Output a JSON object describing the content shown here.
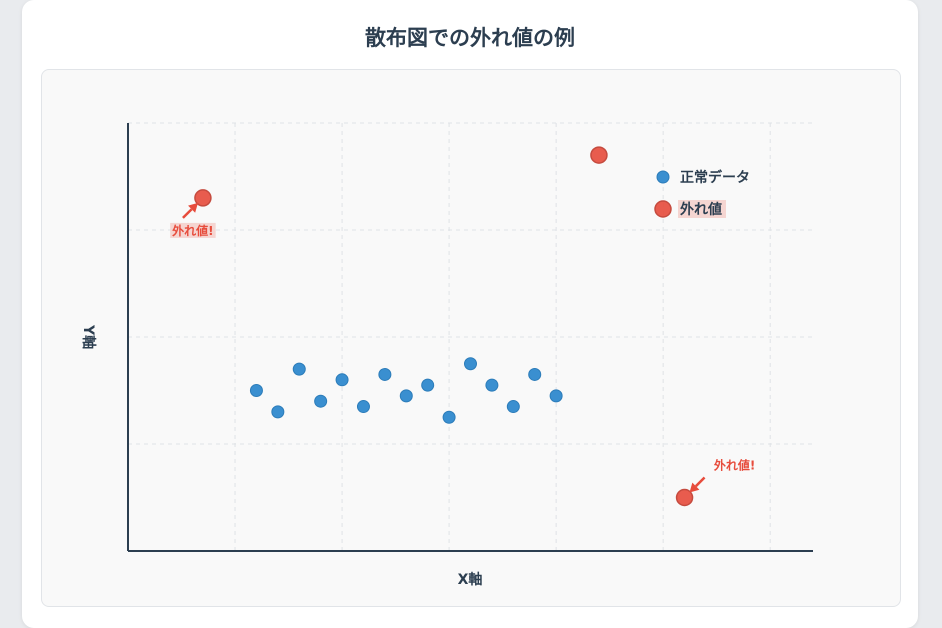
{
  "page": {
    "title": "散布図での外れ値の例"
  },
  "chart_data": {
    "type": "scatter",
    "title": "散布図での外れ値の例",
    "xlabel": "X軸",
    "ylabel": "Y軸",
    "xlim": [
      0,
      32
    ],
    "ylim": [
      0,
      40
    ],
    "grid": true,
    "tick_labels_visible": false,
    "legend_placement": "top-right",
    "series": [
      {
        "name": "正常データ",
        "color": "#3a8fd0",
        "points": [
          {
            "x": 6,
            "y": 15
          },
          {
            "x": 7,
            "y": 13
          },
          {
            "x": 8,
            "y": 17
          },
          {
            "x": 9,
            "y": 14
          },
          {
            "x": 10,
            "y": 16
          },
          {
            "x": 11,
            "y": 13.5
          },
          {
            "x": 12,
            "y": 16.5
          },
          {
            "x": 13,
            "y": 14.5
          },
          {
            "x": 14,
            "y": 15.5
          },
          {
            "x": 15,
            "y": 12.5
          },
          {
            "x": 16,
            "y": 17.5
          },
          {
            "x": 17,
            "y": 15.5
          },
          {
            "x": 18,
            "y": 13.5
          },
          {
            "x": 19,
            "y": 16.5
          },
          {
            "x": 20,
            "y": 14.5
          }
        ]
      },
      {
        "name": "外れ値",
        "color": "#e74c3c",
        "points": [
          {
            "x": 3.5,
            "y": 33
          },
          {
            "x": 22,
            "y": 37
          },
          {
            "x": 26,
            "y": 5
          }
        ]
      }
    ],
    "annotations": [
      {
        "text": "外れ値!",
        "x": 3.5,
        "y": 33,
        "placement": "below-left"
      },
      {
        "text": "外れ値!",
        "x": 26,
        "y": 5,
        "placement": "above-right"
      }
    ]
  }
}
